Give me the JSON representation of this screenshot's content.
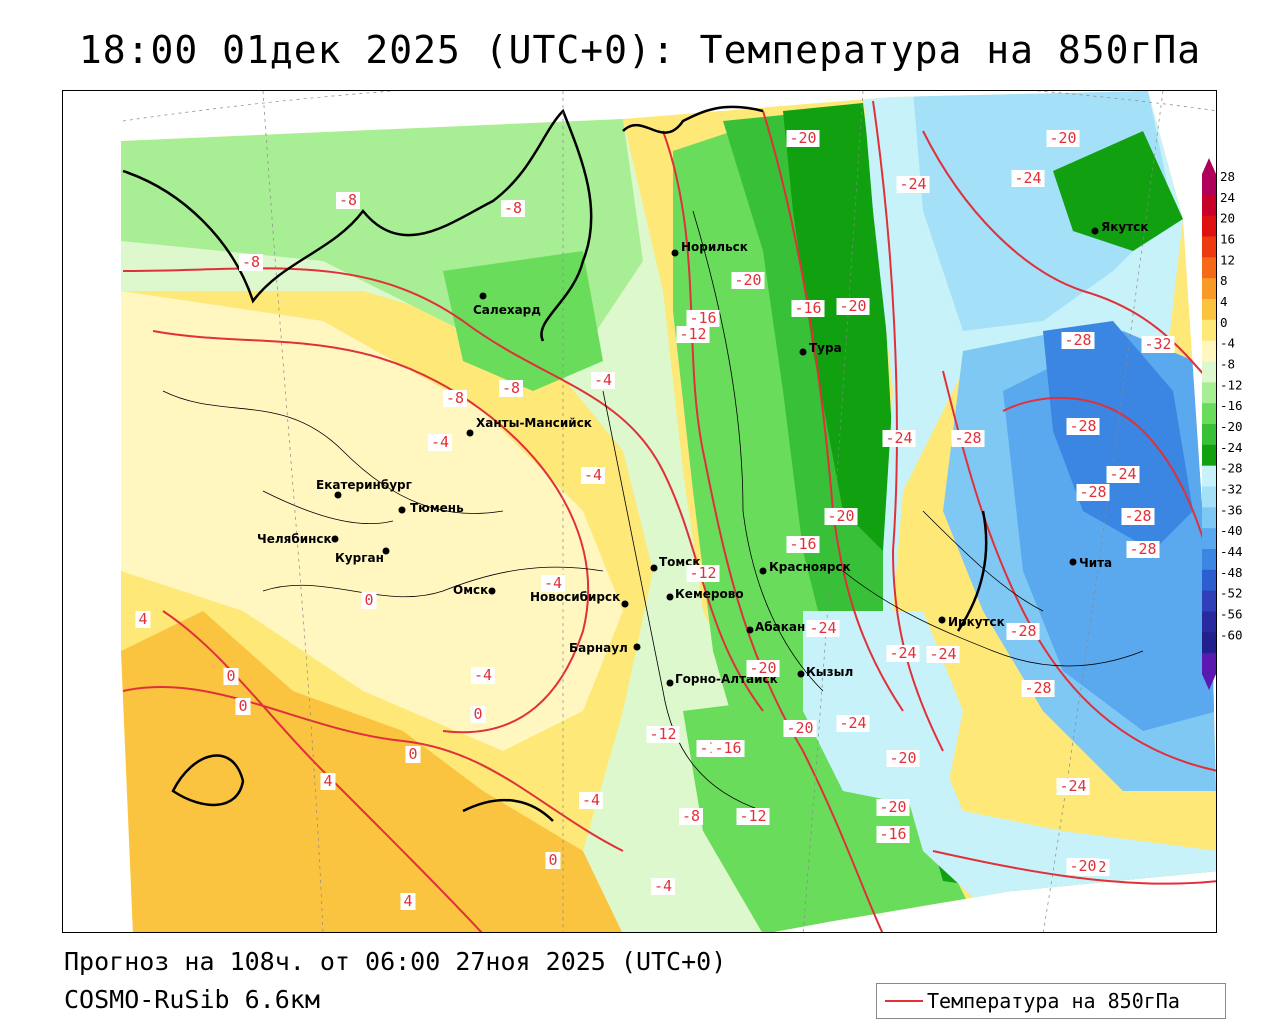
{
  "title": "18:00 01дек 2025 (UTC+0): Температура на 850гПа",
  "footer": {
    "forecast": "Прогноз на 108ч. от 06:00 27ноя 2025 (UTC+0)",
    "model": "COSMO-RuSib 6.6км"
  },
  "legend": {
    "label": "Температура на 850гПа",
    "line_color": "#e0303a"
  },
  "color_scale": {
    "ticks": [
      "28",
      "24",
      "20",
      "16",
      "12",
      "8",
      "4",
      "0",
      "-4",
      "-8",
      "-12",
      "-16",
      "-20",
      "-24",
      "-28",
      "-32",
      "-36",
      "-40",
      "-44",
      "-48",
      "-52",
      "-56",
      "-60"
    ],
    "colors": [
      "#b0005a",
      "#c8002a",
      "#e01010",
      "#ee3a10",
      "#f46a18",
      "#f99a28",
      "#fbc440",
      "#fde878",
      "#fff6c0",
      "#ddf8cc",
      "#a8ee94",
      "#6adc5c",
      "#38c038",
      "#10a010",
      "#c8f2fa",
      "#a4e0f8",
      "#80c8f4",
      "#5aa8ee",
      "#3a86e2",
      "#2c5ed0",
      "#3040b8",
      "#2a2aa0",
      "#22208c",
      "#5a1ab0"
    ]
  },
  "cities": [
    {
      "name": "Норильск"
    },
    {
      "name": "Салехард"
    },
    {
      "name": "Тура"
    },
    {
      "name": "Ханты-Мансийск"
    },
    {
      "name": "Якутск"
    },
    {
      "name": "Екатеринбург"
    },
    {
      "name": "Тюмень"
    },
    {
      "name": "Челябинск"
    },
    {
      "name": "Курган"
    },
    {
      "name": "Омск"
    },
    {
      "name": "Новосибирск"
    },
    {
      "name": "Томск"
    },
    {
      "name": "Кемерово"
    },
    {
      "name": "Красноярск"
    },
    {
      "name": "Барнаул"
    },
    {
      "name": "Абакан"
    },
    {
      "name": "Горно-Алтайск"
    },
    {
      "name": "Кызыл"
    },
    {
      "name": "Иркутск"
    },
    {
      "name": "Чита"
    }
  ],
  "isotherm_labels": [
    "-20",
    "-20",
    "-24",
    "-24",
    "-8",
    "-8",
    "-8",
    "-20",
    "-16",
    "-12",
    "-16",
    "-20",
    "-4",
    "-28",
    "-32",
    "-8",
    "-8",
    "-4",
    "-4",
    "-24",
    "-28",
    "-28",
    "-24",
    "-28",
    "-28",
    "-20",
    "-16",
    "-12",
    "-28",
    "-4",
    "0",
    "0",
    "-24",
    "-24",
    "-24",
    "-20",
    "-28",
    "-28",
    "4",
    "-4",
    "0",
    "0",
    "-12",
    "-16",
    "-16",
    "-20",
    "-24",
    "-20",
    "4",
    "0",
    "-4",
    "-8",
    "-12",
    "-20",
    "-16",
    "0",
    "-4",
    "-12",
    "-20",
    "-24",
    "4"
  ]
}
